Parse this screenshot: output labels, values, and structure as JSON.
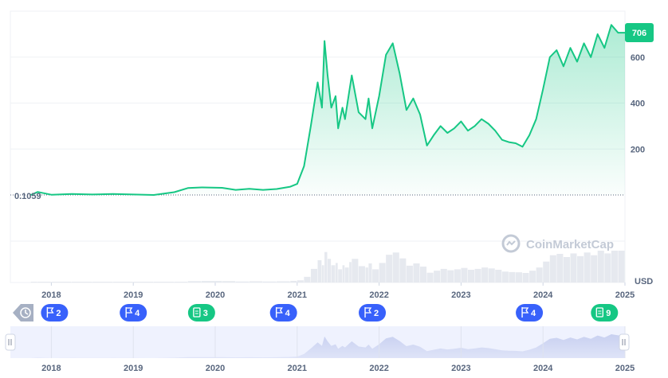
{
  "chart_data": {
    "type": "area",
    "currency_label": "USD",
    "baseline_label": "0.1059",
    "last_price_label": "706",
    "watermark": "CoinMarketCap",
    "ylim": [
      0,
      800
    ],
    "y_ticks": [
      200,
      400,
      600
    ],
    "x_ticks": [
      "2018",
      "2019",
      "2020",
      "2021",
      "2022",
      "2023",
      "2024",
      "2025"
    ],
    "navigator_ticks": [
      "2018",
      "2019",
      "2020",
      "2021",
      "2022",
      "2023",
      "2024",
      "2025"
    ],
    "series": [
      {
        "x": [
          "2017-10",
          "2017-11",
          "2018-01",
          "2018-04",
          "2018-07",
          "2018-10",
          "2019-01",
          "2019-04",
          "2019-07",
          "2019-09",
          "2019-11",
          "2020-02",
          "2020-04",
          "2020-06",
          "2020-08",
          "2020-10",
          "2020-12",
          "2021-01",
          "2021-02",
          "2021-03",
          "2021-04",
          "2021-04-20",
          "2021-05",
          "2021-05-15",
          "2021-06",
          "2021-06-20",
          "2021-07",
          "2021-07-20",
          "2021-08",
          "2021-08-20",
          "2021-09",
          "2021-10",
          "2021-11",
          "2021-11-15",
          "2021-12",
          "2022-01",
          "2022-02",
          "2022-03",
          "2022-04",
          "2022-05",
          "2022-06",
          "2022-07",
          "2022-08",
          "2022-09",
          "2022-10",
          "2022-11",
          "2022-12",
          "2023-01",
          "2023-02",
          "2023-03",
          "2023-04",
          "2023-05",
          "2023-06",
          "2023-07",
          "2023-08",
          "2023-09",
          "2023-10",
          "2023-11",
          "2023-12",
          "2024-01",
          "2024-02",
          "2024-03",
          "2024-04",
          "2024-05",
          "2024-06",
          "2024-07",
          "2024-08",
          "2024-09",
          "2024-10",
          "2024-11",
          "2024-12",
          "2025-01"
        ],
        "values": [
          0.11,
          13,
          1,
          4,
          2,
          4,
          2,
          0.11,
          12,
          30,
          33,
          31,
          22,
          27,
          22,
          26,
          36,
          48,
          125,
          300,
          490,
          380,
          670,
          520,
          380,
          430,
          290,
          380,
          330,
          450,
          520,
          360,
          330,
          420,
          290,
          430,
          610,
          660,
          530,
          370,
          420,
          350,
          215,
          260,
          300,
          270,
          290,
          320,
          280,
          300,
          330,
          310,
          280,
          240,
          230,
          225,
          210,
          260,
          330,
          460,
          600,
          630,
          560,
          640,
          580,
          660,
          600,
          700,
          640,
          740,
          706,
          706
        ]
      }
    ],
    "annotations": [
      {
        "kind": "history",
        "label": ""
      },
      {
        "kind": "flag",
        "label": "2",
        "x": "2018-01"
      },
      {
        "kind": "flag",
        "label": "4",
        "x": "2019-01"
      },
      {
        "kind": "doc",
        "label": "3",
        "x": "2019-11"
      },
      {
        "kind": "flag",
        "label": "4",
        "x": "2020-11"
      },
      {
        "kind": "flag",
        "label": "2",
        "x": "2021-12"
      },
      {
        "kind": "flag",
        "label": "4",
        "x": "2023-11"
      },
      {
        "kind": "doc",
        "label": "9",
        "x": "2024-10"
      }
    ],
    "colors": {
      "line": "#16c784",
      "flag": "#3861fb",
      "doc": "#16c784",
      "history": "#a6b0c3",
      "navigator_bg": "#eff2fe"
    }
  }
}
